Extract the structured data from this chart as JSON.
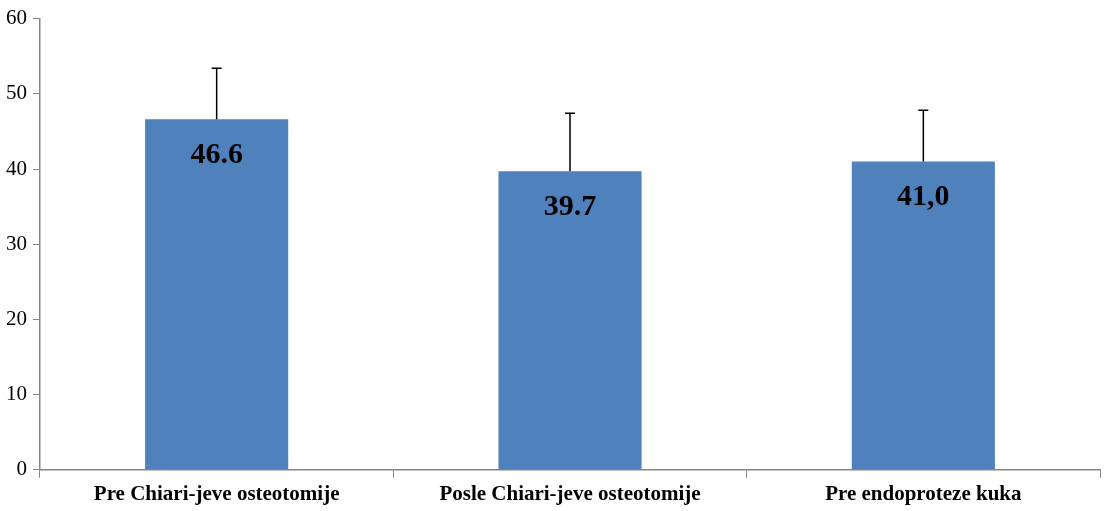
{
  "chart_data": {
    "type": "bar",
    "categories": [
      "Pre Chiari-jeve osteotomije",
      "Posle Chiari-jeve osteotomije",
      "Pre endoproteze kuka"
    ],
    "values": [
      46.6,
      39.7,
      41.0
    ],
    "value_labels": [
      "46.6",
      "39.7",
      "41,0"
    ],
    "errors": [
      [
        46.6,
        53.4
      ],
      [
        39.7,
        47.4
      ],
      [
        41.0,
        47.8
      ]
    ],
    "color": "#4f81bd",
    "ylim": [
      0,
      60
    ],
    "yticks": [
      0,
      10,
      20,
      30,
      40,
      50,
      60
    ],
    "grid": false,
    "legend": false
  }
}
